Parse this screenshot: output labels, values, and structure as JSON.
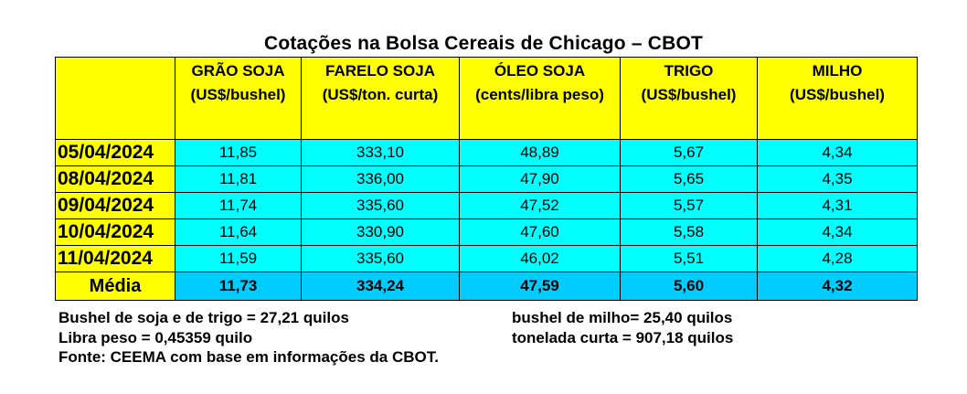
{
  "title": "Cotações na Bolsa Cereais de Chicago – CBOT",
  "columns": [
    {
      "name": "GRÃO SOJA",
      "unit": "(US$/bushel)"
    },
    {
      "name": "FARELO SOJA",
      "unit": "(US$/ton. curta)"
    },
    {
      "name": "ÓLEO SOJA",
      "unit": "(cents/libra peso)"
    },
    {
      "name": "TRIGO",
      "unit": "(US$/bushel)"
    },
    {
      "name": "MILHO",
      "unit": "(US$/bushel)"
    }
  ],
  "rows": [
    {
      "date": "05/04/2024",
      "values": [
        "11,85",
        "333,10",
        "48,89",
        "5,67",
        "4,34"
      ]
    },
    {
      "date": "08/04/2024",
      "values": [
        "11,81",
        "336,00",
        "47,90",
        "5,65",
        "4,35"
      ]
    },
    {
      "date": "09/04/2024",
      "values": [
        "11,74",
        "335,60",
        "47,52",
        "5,57",
        "4,31"
      ]
    },
    {
      "date": "10/04/2024",
      "values": [
        "11,64",
        "330,90",
        "47,60",
        "5,58",
        "4,34"
      ]
    },
    {
      "date": "11/04/2024",
      "values": [
        "11,59",
        "335,60",
        "46,02",
        "5,51",
        "4,28"
      ]
    }
  ],
  "average": {
    "label": "Média",
    "values": [
      "11,73",
      "334,24",
      "47,59",
      "5,60",
      "4,32"
    ]
  },
  "notes": {
    "left": [
      "Bushel de soja e de trigo = 27,21 quilos",
      "Libra peso = 0,45359 quilo"
    ],
    "right": [
      "bushel de milho= 25,40 quilos",
      "tonelada curta = 907,18 quilos"
    ],
    "source": "Fonte: CEEMA com base em informações da CBOT."
  },
  "colors": {
    "header": "#ffff00",
    "cell": "#00ffff",
    "average": "#00ccff"
  }
}
